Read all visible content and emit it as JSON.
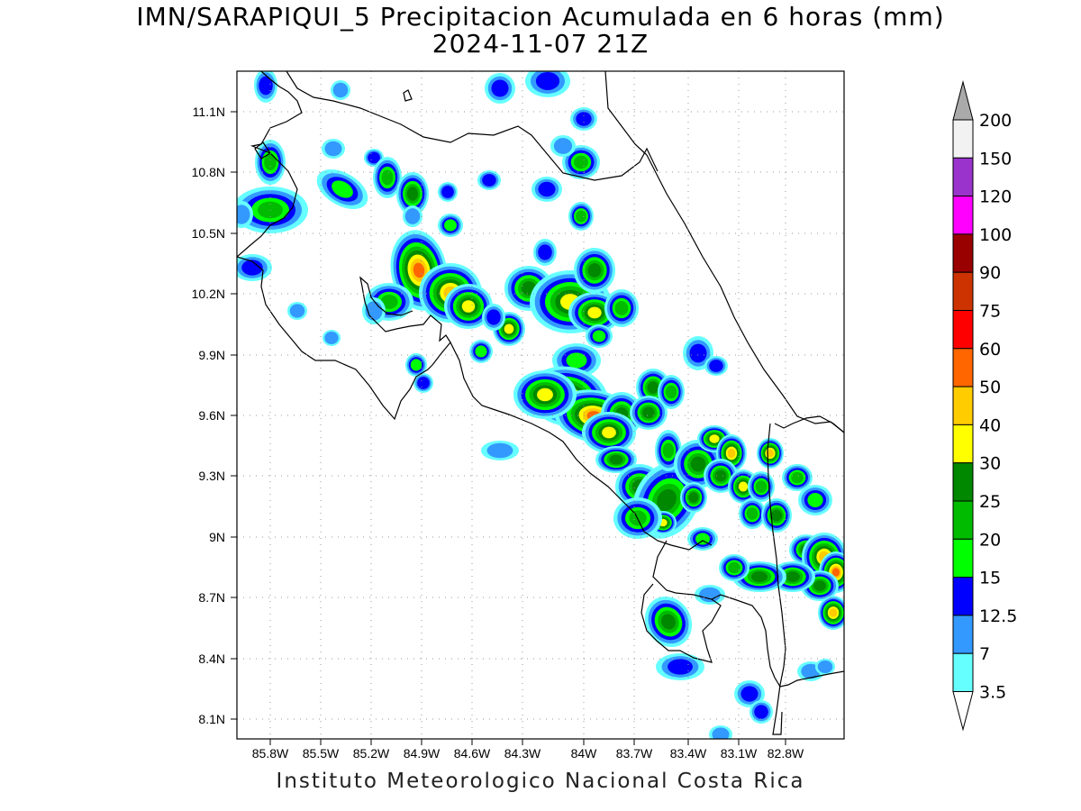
{
  "title": {
    "line1": "IMN/SARAPIQUI_5 Precipitacion Acumulada en 6 horas (mm)",
    "line2": "2024-11-07 21Z"
  },
  "footer": "Instituto Meteorologico Nacional Costa Rica",
  "map": {
    "lat_ticks": [
      "11.1N",
      "10.8N",
      "10.5N",
      "10.2N",
      "9.9N",
      "9.6N",
      "9.3N",
      "9N",
      "8.7N",
      "8.4N",
      "8.1N"
    ],
    "lon_ticks": [
      "85.8W",
      "85.5W",
      "85.2W",
      "84.9W",
      "84.6W",
      "84.3W",
      "84W",
      "83.7W",
      "83.4W",
      "83.1W",
      "82.8W"
    ]
  },
  "colorbar": {
    "labels": [
      "200",
      "150",
      "120",
      "100",
      "90",
      "75",
      "60",
      "50",
      "40",
      "30",
      "25",
      "20",
      "15",
      "12.5",
      "7",
      "3.5"
    ],
    "colors": [
      "#f2f2f2",
      "#9933cc",
      "#ff00ff",
      "#990000",
      "#cc3300",
      "#ff0000",
      "#ff6600",
      "#ffcc00",
      "#ffff00",
      "#008800",
      "#00bb00",
      "#00ff00",
      "#0000ff",
      "#3399ff",
      "#66ffff"
    ],
    "over_color": "#aaaaaa",
    "under_color": "#ffffff"
  },
  "legend_colors": {
    "c3": "#66ffff",
    "c7": "#3399ff",
    "c12": "#0000ff",
    "c15": "#00ff00",
    "c20": "#00bb00",
    "c25": "#008800",
    "c30": "#ffff00",
    "c40": "#ffcc00",
    "c50": "#ff6600",
    "c60": "#ff0000"
  }
}
